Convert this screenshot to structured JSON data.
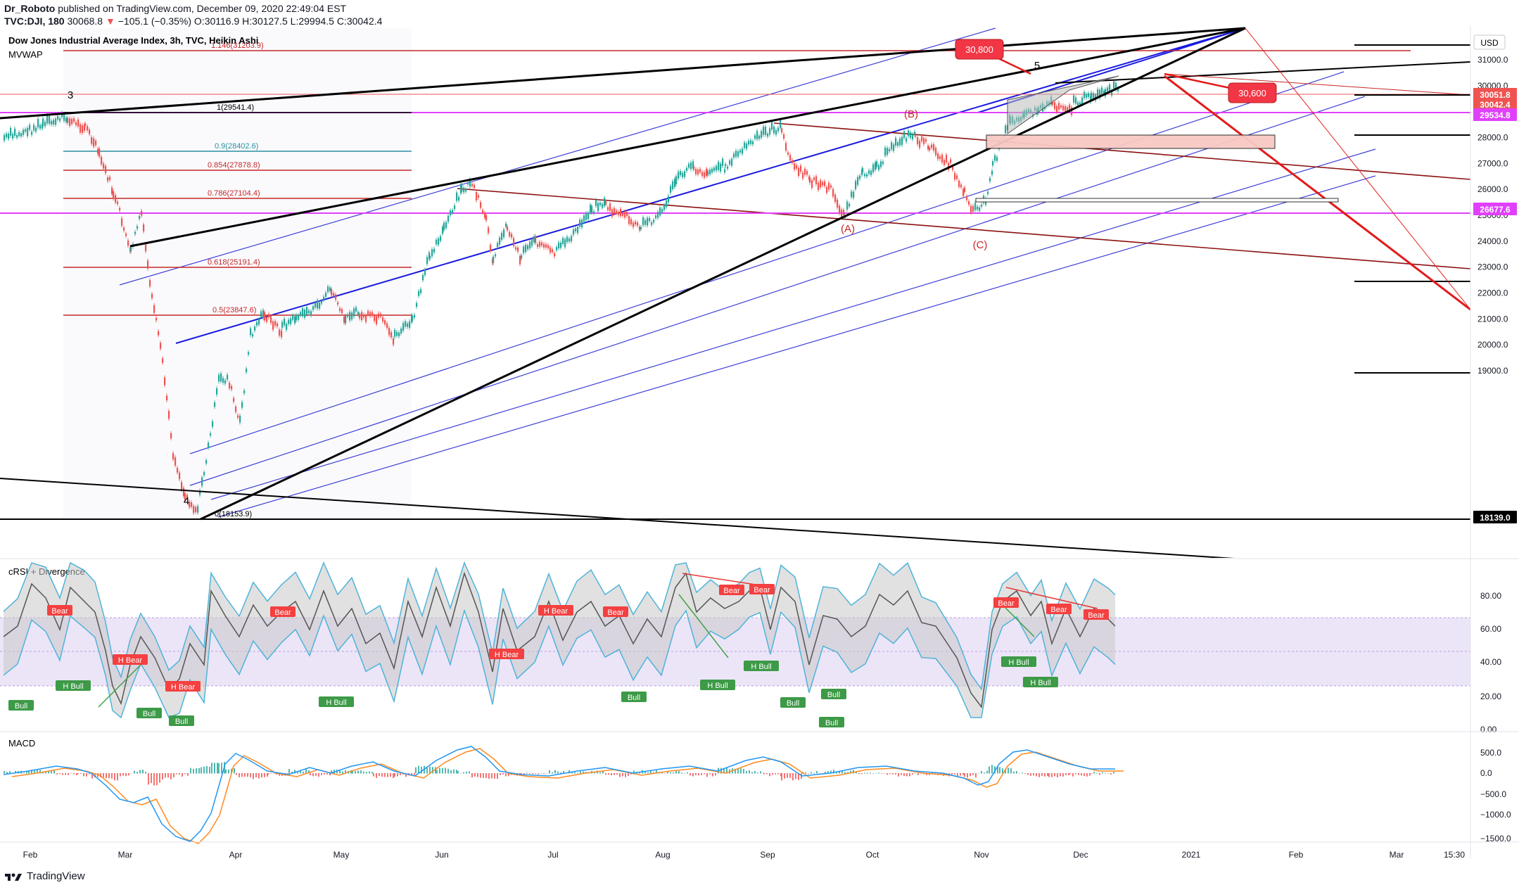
{
  "header": {
    "author": "Dr_Roboto",
    "published_text": "published on TradingView.com, December 09, 2020 22:49:04 EST",
    "symbol_line": "TVC:DJI, 180",
    "last_price": "30068.8",
    "change": "−105.1 (−0.35%)",
    "ohlc": "O:30116.9 H:30127.5 L:29994.5 C:30042.4"
  },
  "main_pane": {
    "title": "Dow Jones Industrial Average Index, 3h, TVC, Heikin Ashi",
    "indicator": "MVWAP",
    "currency": "USD",
    "y_ticks": [
      "31000.0",
      "30000.0",
      "29000.0",
      "28000.0",
      "27000.0",
      "26000.0",
      "25000.0",
      "24000.0",
      "23000.0",
      "22000.0",
      "21000.0",
      "20000.0",
      "19000.0"
    ],
    "price_labels": [
      {
        "text": "30051.8",
        "color": "#ef5350"
      },
      {
        "text": "30042.4",
        "color": "#ef5350"
      },
      {
        "text": "29534.8",
        "color": "#e040fb"
      },
      {
        "text": "26677.6",
        "color": "#e040fb"
      },
      {
        "text": "18139.0",
        "color": "#000000"
      }
    ],
    "fib_levels": [
      "1.146(31203.9)",
      "1(29541.4)",
      "0.9(28402.6)",
      "0.854(27878.8)",
      "0.786(27104.4)",
      "0.618(25191.4)",
      "0.5(23847.6)",
      "0(18153.9)"
    ],
    "wave_labels": [
      "3",
      "4",
      "5",
      "(A)",
      "(B)",
      "(C)"
    ],
    "callouts": [
      "30,800",
      "30,600"
    ]
  },
  "crsi_pane": {
    "title": "cRSI + Divergence",
    "y_ticks": [
      "80.00",
      "60.00",
      "40.00",
      "20.00",
      "0.00"
    ],
    "signals": [
      {
        "text": "Bear",
        "type": "bear"
      },
      {
        "text": "H Bear",
        "type": "bear"
      },
      {
        "text": "H Bear",
        "type": "bear"
      },
      {
        "text": "Bear",
        "type": "bear"
      },
      {
        "text": "H Bear",
        "type": "bear"
      },
      {
        "text": "H Bear",
        "type": "bear"
      },
      {
        "text": "Bear",
        "type": "bear"
      },
      {
        "text": "Bear",
        "type": "bear"
      },
      {
        "text": "Bear",
        "type": "bear"
      },
      {
        "text": "Bear",
        "type": "bear"
      },
      {
        "text": "Bear",
        "type": "bear"
      },
      {
        "text": "Bear",
        "type": "bear"
      },
      {
        "text": "Bull",
        "type": "bull"
      },
      {
        "text": "H Bull",
        "type": "bull"
      },
      {
        "text": "Bull",
        "type": "bull"
      },
      {
        "text": "Bull",
        "type": "bull"
      },
      {
        "text": "H Bull",
        "type": "bull"
      },
      {
        "text": "Bull",
        "type": "bull"
      },
      {
        "text": "H Bull",
        "type": "bull"
      },
      {
        "text": "H Bull",
        "type": "bull"
      },
      {
        "text": "Bull",
        "type": "bull"
      },
      {
        "text": "Bull",
        "type": "bull"
      },
      {
        "text": "Bull",
        "type": "bull"
      },
      {
        "text": "H Bull",
        "type": "bull"
      },
      {
        "text": "H Bull",
        "type": "bull"
      }
    ]
  },
  "macd_pane": {
    "title": "MACD",
    "y_ticks": [
      "500.0",
      "0.0",
      "−500.0",
      "−1000.0",
      "−1500.0"
    ]
  },
  "x_axis": [
    "Feb",
    "Mar",
    "Apr",
    "May",
    "Jun",
    "Jul",
    "Aug",
    "Sep",
    "Oct",
    "Nov",
    "Dec",
    "2021",
    "Feb",
    "Mar",
    "15:30"
  ],
  "footer": {
    "brand": "TradingView"
  },
  "chart_data": [
    {
      "type": "line",
      "title": "Dow Jones Industrial Average Index, 3h, TVC, Heikin Ashi",
      "xlabel": "",
      "ylabel": "",
      "ylim": [
        17000,
        31600
      ],
      "x": [
        "Feb 1",
        "Feb 12",
        "Feb 20",
        "Mar 1",
        "Mar 9",
        "Mar 16",
        "Mar 23",
        "Apr 1",
        "Apr 15",
        "May 1",
        "May 15",
        "Jun 1",
        "Jun 8",
        "Jun 12",
        "Jun 26",
        "Jul 15",
        "Aug 1",
        "Aug 15",
        "Sep 2",
        "Sep 10",
        "Sep 24",
        "Oct 12",
        "Oct 28",
        "Nov 1",
        "Nov 9",
        "Nov 20",
        "Dec 9"
      ],
      "series": [
        {
          "values": [
            28700,
            29500,
            29200,
            25800,
            25200,
            21200,
            18200,
            21700,
            23900,
            24000,
            24200,
            25700,
            27500,
            25600,
            25000,
            26800,
            26600,
            28400,
            29100,
            27900,
            26800,
            28800,
            26500,
            26600,
            29200,
            29600,
            30050
          ]
        }
      ]
    },
    {
      "type": "line",
      "title": "cRSI + Divergence",
      "ylim": [
        0,
        90
      ],
      "x": [
        "Feb",
        "Mar",
        "Apr",
        "May",
        "Jun",
        "Jul",
        "Aug",
        "Sep",
        "Oct",
        "Nov",
        "Dec"
      ],
      "series": [
        {
          "values": [
            35,
            15,
            70,
            50,
            80,
            45,
            75,
            70,
            45,
            75,
            65
          ]
        }
      ]
    },
    {
      "type": "line",
      "title": "MACD",
      "ylim": [
        -1700,
        700
      ],
      "x": [
        "Feb",
        "Mar",
        "Mar 23",
        "Apr",
        "May",
        "Jun",
        "Jul",
        "Aug",
        "Sep",
        "Oct",
        "Nov",
        "Dec"
      ],
      "series": [
        {
          "values": [
            100,
            -150,
            -1300,
            300,
            50,
            550,
            0,
            150,
            350,
            -50,
            500,
            150
          ]
        }
      ]
    }
  ]
}
